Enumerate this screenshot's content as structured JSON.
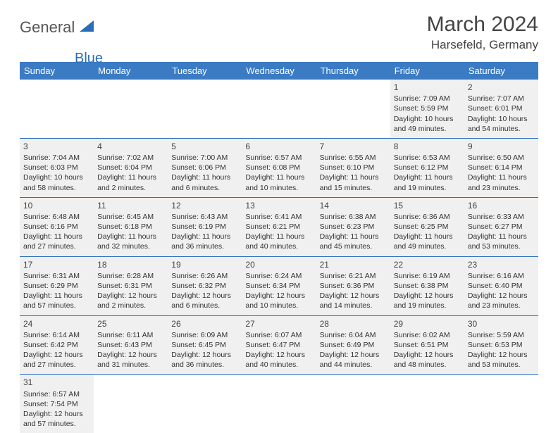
{
  "logo": {
    "part1": "General",
    "part2": "Blue",
    "shape_color": "#2a6db8"
  },
  "title": "March 2024",
  "location": "Harsefeld, Germany",
  "header_bg": "#3b7bc4",
  "row_bg": "#f0f0f0",
  "row_border": "#2a6db8",
  "weekdays": [
    "Sunday",
    "Monday",
    "Tuesday",
    "Wednesday",
    "Thursday",
    "Friday",
    "Saturday"
  ],
  "first_weekday_index": 5,
  "days": [
    {
      "n": 1,
      "sr": "7:09 AM",
      "ss": "5:59 PM",
      "dl": "10 hours and 49 minutes."
    },
    {
      "n": 2,
      "sr": "7:07 AM",
      "ss": "6:01 PM",
      "dl": "10 hours and 54 minutes."
    },
    {
      "n": 3,
      "sr": "7:04 AM",
      "ss": "6:03 PM",
      "dl": "10 hours and 58 minutes."
    },
    {
      "n": 4,
      "sr": "7:02 AM",
      "ss": "6:04 PM",
      "dl": "11 hours and 2 minutes."
    },
    {
      "n": 5,
      "sr": "7:00 AM",
      "ss": "6:06 PM",
      "dl": "11 hours and 6 minutes."
    },
    {
      "n": 6,
      "sr": "6:57 AM",
      "ss": "6:08 PM",
      "dl": "11 hours and 10 minutes."
    },
    {
      "n": 7,
      "sr": "6:55 AM",
      "ss": "6:10 PM",
      "dl": "11 hours and 15 minutes."
    },
    {
      "n": 8,
      "sr": "6:53 AM",
      "ss": "6:12 PM",
      "dl": "11 hours and 19 minutes."
    },
    {
      "n": 9,
      "sr": "6:50 AM",
      "ss": "6:14 PM",
      "dl": "11 hours and 23 minutes."
    },
    {
      "n": 10,
      "sr": "6:48 AM",
      "ss": "6:16 PM",
      "dl": "11 hours and 27 minutes."
    },
    {
      "n": 11,
      "sr": "6:45 AM",
      "ss": "6:18 PM",
      "dl": "11 hours and 32 minutes."
    },
    {
      "n": 12,
      "sr": "6:43 AM",
      "ss": "6:19 PM",
      "dl": "11 hours and 36 minutes."
    },
    {
      "n": 13,
      "sr": "6:41 AM",
      "ss": "6:21 PM",
      "dl": "11 hours and 40 minutes."
    },
    {
      "n": 14,
      "sr": "6:38 AM",
      "ss": "6:23 PM",
      "dl": "11 hours and 45 minutes."
    },
    {
      "n": 15,
      "sr": "6:36 AM",
      "ss": "6:25 PM",
      "dl": "11 hours and 49 minutes."
    },
    {
      "n": 16,
      "sr": "6:33 AM",
      "ss": "6:27 PM",
      "dl": "11 hours and 53 minutes."
    },
    {
      "n": 17,
      "sr": "6:31 AM",
      "ss": "6:29 PM",
      "dl": "11 hours and 57 minutes."
    },
    {
      "n": 18,
      "sr": "6:28 AM",
      "ss": "6:31 PM",
      "dl": "12 hours and 2 minutes."
    },
    {
      "n": 19,
      "sr": "6:26 AM",
      "ss": "6:32 PM",
      "dl": "12 hours and 6 minutes."
    },
    {
      "n": 20,
      "sr": "6:24 AM",
      "ss": "6:34 PM",
      "dl": "12 hours and 10 minutes."
    },
    {
      "n": 21,
      "sr": "6:21 AM",
      "ss": "6:36 PM",
      "dl": "12 hours and 14 minutes."
    },
    {
      "n": 22,
      "sr": "6:19 AM",
      "ss": "6:38 PM",
      "dl": "12 hours and 19 minutes."
    },
    {
      "n": 23,
      "sr": "6:16 AM",
      "ss": "6:40 PM",
      "dl": "12 hours and 23 minutes."
    },
    {
      "n": 24,
      "sr": "6:14 AM",
      "ss": "6:42 PM",
      "dl": "12 hours and 27 minutes."
    },
    {
      "n": 25,
      "sr": "6:11 AM",
      "ss": "6:43 PM",
      "dl": "12 hours and 31 minutes."
    },
    {
      "n": 26,
      "sr": "6:09 AM",
      "ss": "6:45 PM",
      "dl": "12 hours and 36 minutes."
    },
    {
      "n": 27,
      "sr": "6:07 AM",
      "ss": "6:47 PM",
      "dl": "12 hours and 40 minutes."
    },
    {
      "n": 28,
      "sr": "6:04 AM",
      "ss": "6:49 PM",
      "dl": "12 hours and 44 minutes."
    },
    {
      "n": 29,
      "sr": "6:02 AM",
      "ss": "6:51 PM",
      "dl": "12 hours and 48 minutes."
    },
    {
      "n": 30,
      "sr": "5:59 AM",
      "ss": "6:53 PM",
      "dl": "12 hours and 53 minutes."
    },
    {
      "n": 31,
      "sr": "6:57 AM",
      "ss": "7:54 PM",
      "dl": "12 hours and 57 minutes."
    }
  ],
  "labels": {
    "sunrise": "Sunrise:",
    "sunset": "Sunset:",
    "daylight": "Daylight:"
  }
}
